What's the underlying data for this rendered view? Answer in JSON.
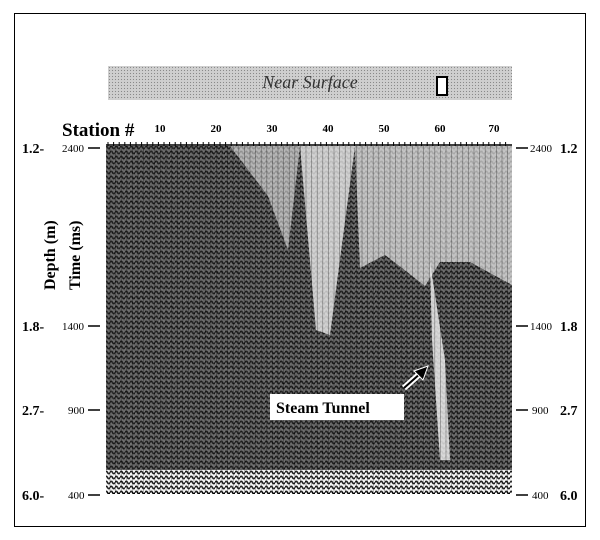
{
  "header_band": {
    "label": "Near Surface"
  },
  "station_axis": {
    "title": "Station #",
    "ticks": [
      "10",
      "20",
      "30",
      "40",
      "50",
      "60",
      "70"
    ]
  },
  "left_axis": {
    "depth_title": "Depth (m)",
    "time_title": "Time (ms)",
    "rows": [
      {
        "depth": "1.2-",
        "time": "2400"
      },
      {
        "depth": "1.8-",
        "time": "1400"
      },
      {
        "depth": "2.7-",
        "time": "900"
      },
      {
        "depth": "6.0-",
        "time": "400"
      }
    ]
  },
  "right_axis": {
    "rows": [
      {
        "time": "2400",
        "depth": "1.2"
      },
      {
        "time": "1400",
        "depth": "1.8"
      },
      {
        "time": "900",
        "depth": "2.7"
      },
      {
        "time": "400",
        "depth": "6.0"
      }
    ]
  },
  "annotation": {
    "label": "Steam Tunnel"
  }
}
